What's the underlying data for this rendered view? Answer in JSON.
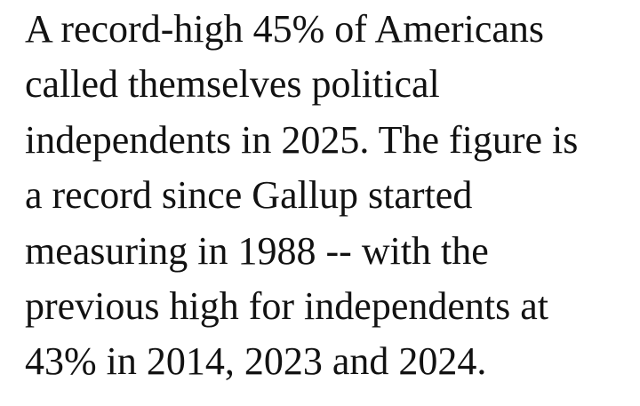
{
  "page": {
    "background_color": "#ffffff",
    "text_color": "#121212"
  },
  "paragraph": {
    "full_text": "A record-high 45% of Americans called themselves political independents in 2025. The figure is a record since Gallup started measuring in 1988 -- with the previous high for independents at 43% in 2014, 2023 and 2024.",
    "lines": [
      "A record-high 45% of Americans",
      "called themselves political",
      "independents in 2025. The figure is",
      "a record since Gallup started",
      "measuring in 1988 -- with the",
      "previous high for independents at",
      "43% in 2014, 2023 and 2024."
    ]
  }
}
